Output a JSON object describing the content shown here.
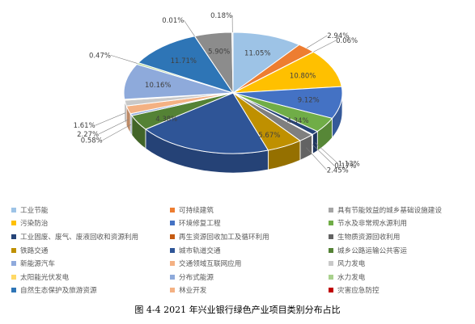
{
  "chart_data": {
    "type": "pie",
    "variant": "3d",
    "title": "",
    "slices": [
      {
        "label": "工业节能",
        "value": 11.05,
        "value_label": "11.05%",
        "color": "#9DC3E6"
      },
      {
        "label": "可持续建筑",
        "value": 2.94,
        "value_label": "2.94%",
        "color": "#ED7D31"
      },
      {
        "label": "具有节能效益的城乡基础设施建设",
        "value": 0.06,
        "value_label": "0.06%",
        "color": "#A5A5A5"
      },
      {
        "label": "污染防治",
        "value": 10.8,
        "value_label": "10.80%",
        "color": "#FFC000"
      },
      {
        "label": "环境修复工程",
        "value": 9.12,
        "value_label": "9.12%",
        "color": "#4472C4"
      },
      {
        "label": "节水及非常规水源利用",
        "value": 4.34,
        "value_label": "4.34%",
        "color": "#70AD47"
      },
      {
        "label": "工业固废、废气、废液回收和资源利用",
        "value": 1.13,
        "value_label": "1.13%",
        "color": "#264478"
      },
      {
        "label": "再生资源回收加工及循环利用",
        "value": 0.17,
        "value_label": "0.17%",
        "color": "#C55A11"
      },
      {
        "label": "生物质资源回收利用",
        "value": 2.45,
        "value_label": "2.45%",
        "color": "#7F7F7F"
      },
      {
        "label": "铁路交通",
        "value": 5.67,
        "value_label": "5.67%",
        "color": "#BF9000"
      },
      {
        "label": "城市轨道交通",
        "value": 21.27,
        "value_label": "",
        "color": "#2F5597"
      },
      {
        "label": "城乡公路运输公共客运",
        "value": 4.38,
        "value_label": "4.38%",
        "color": "#548235"
      },
      {
        "label": "新能源汽车",
        "value": 0.58,
        "value_label": "0.58%",
        "color": "#8FAADC"
      },
      {
        "label": "交通领域互联网应用",
        "value": 2.27,
        "value_label": "2.27%",
        "color": "#F4B183"
      },
      {
        "label": "风力发电",
        "value": 1.61,
        "value_label": "1.61%",
        "color": "#C9C9C9"
      },
      {
        "label": "太阳能光伏发电",
        "value": 0.28,
        "value_label": "",
        "color": "#FFD966"
      },
      {
        "label": "分布式能源",
        "value": 10.16,
        "value_label": "10.16%",
        "color": "#8EAADB"
      },
      {
        "label": "水力发电",
        "value": 0.47,
        "value_label": "0.47%",
        "color": "#A9D18E"
      },
      {
        "label": "自然生态保护及旅游资源",
        "value": 11.71,
        "value_label": "11.71%",
        "color": "#2E75B6"
      },
      {
        "label": "林业开发",
        "value": 0.01,
        "value_label": "0.01%",
        "color": "#F8CBAD"
      },
      {
        "label": "灾害应急防控",
        "value": 5.9,
        "value_label": "5.90%",
        "color": "#8C8C8C"
      },
      {
        "label": "",
        "value": 0.18,
        "value_label": "0.18%",
        "color": "#D9D9D9"
      }
    ],
    "legend_position": "bottom"
  },
  "legend": [
    {
      "label": "工业节能",
      "color": "#9DC3E6"
    },
    {
      "label": "可持续建筑",
      "color": "#ED7D31"
    },
    {
      "label": "具有节能效益的城乡基础设施建设",
      "color": "#A5A5A5"
    },
    {
      "label": "污染防治",
      "color": "#FFC000"
    },
    {
      "label": "环境修复工程",
      "color": "#4472C4"
    },
    {
      "label": "节水及非常规水源利用",
      "color": "#70AD47"
    },
    {
      "label": "工业固废、废气、废液回收和资源利用",
      "color": "#264478"
    },
    {
      "label": "再生资源回收加工及循环利用",
      "color": "#C55A11"
    },
    {
      "label": "生物质资源回收利用",
      "color": "#636363"
    },
    {
      "label": "铁路交通",
      "color": "#BF9000"
    },
    {
      "label": "城市轨道交通",
      "color": "#2F5597"
    },
    {
      "label": "城乡公路运输公共客运",
      "color": "#548235"
    },
    {
      "label": "新能源汽车",
      "color": "#8FAADC"
    },
    {
      "label": "交通领域互联网应用",
      "color": "#F4B183"
    },
    {
      "label": "风力发电",
      "color": "#C9C9C9"
    },
    {
      "label": "太阳能光伏发电",
      "color": "#FFD966"
    },
    {
      "label": "分布式能源",
      "color": "#8EAADB"
    },
    {
      "label": "水力发电",
      "color": "#A9D18E"
    },
    {
      "label": "自然生态保护及旅游资源",
      "color": "#2E75B6"
    },
    {
      "label": "林业开发",
      "color": "#F4B183"
    },
    {
      "label": "灾害应急防控",
      "color": "#C00000"
    }
  ],
  "caption": "图 4-4   2021 年兴业银行绿色产业项目类别分布占比"
}
